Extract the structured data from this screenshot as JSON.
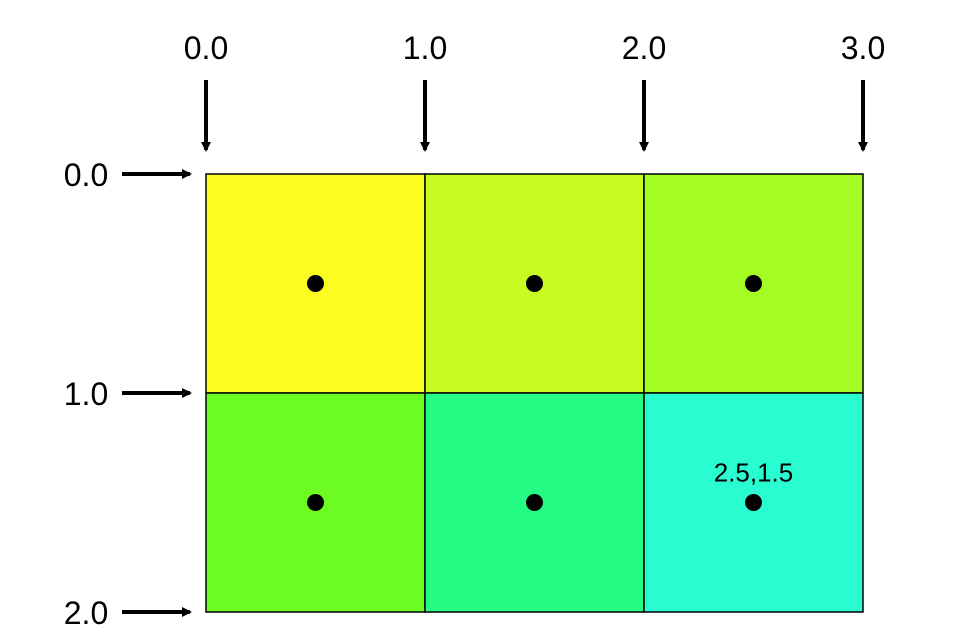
{
  "x_ticks": [
    "0.0",
    "1.0",
    "2.0",
    "3.0"
  ],
  "y_ticks": [
    "0.0",
    "1.0",
    "2.0"
  ],
  "rows": [
    [
      {
        "color": "#fcfc22"
      },
      {
        "color": "#c6fc22"
      },
      {
        "color": "#a3fc22"
      }
    ],
    [
      {
        "color": "#6dfc22"
      },
      {
        "color": "#24fc85"
      },
      {
        "color": "#2afcd2",
        "label": "2.5,1.5"
      }
    ]
  ],
  "grid_line_color": "#000000"
}
